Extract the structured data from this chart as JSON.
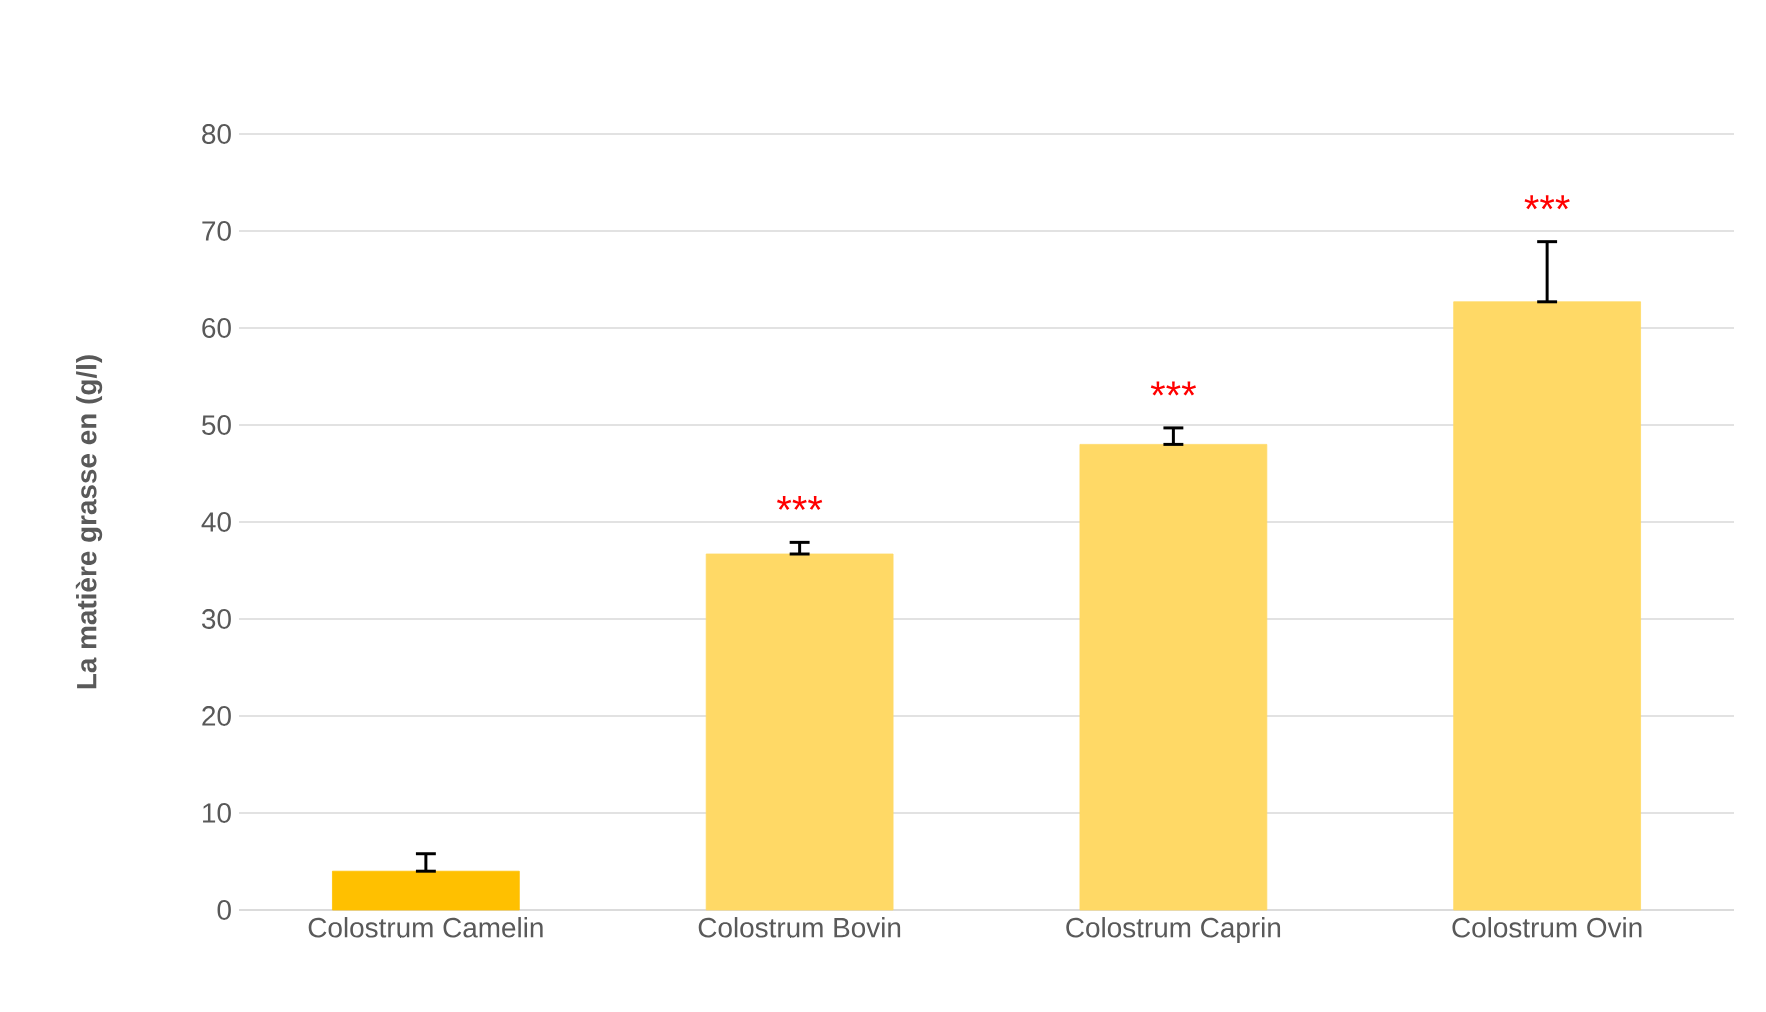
{
  "chart_data": {
    "type": "bar",
    "ylabel": "La matière grasse en (g/l)",
    "categories": [
      "Colostrum Camelin",
      "Colostrum Bovin",
      "Colostrum Caprin",
      "Colostrum Ovin"
    ],
    "values": [
      4,
      36.7,
      48,
      62.7
    ],
    "colors": [
      "#ffc000",
      "#ffd966",
      "#ffd966",
      "#ffd966"
    ],
    "errors": [
      [
        4,
        5.8
      ],
      [
        36.7,
        37.9
      ],
      [
        48,
        49.7
      ],
      [
        62.7,
        68.9
      ]
    ],
    "ylim": [
      0,
      80
    ],
    "yticks": [
      0,
      10,
      20,
      30,
      40,
      50,
      60,
      70,
      80
    ],
    "grid": "y",
    "annotations": [
      "***",
      "***",
      "***"
    ]
  }
}
